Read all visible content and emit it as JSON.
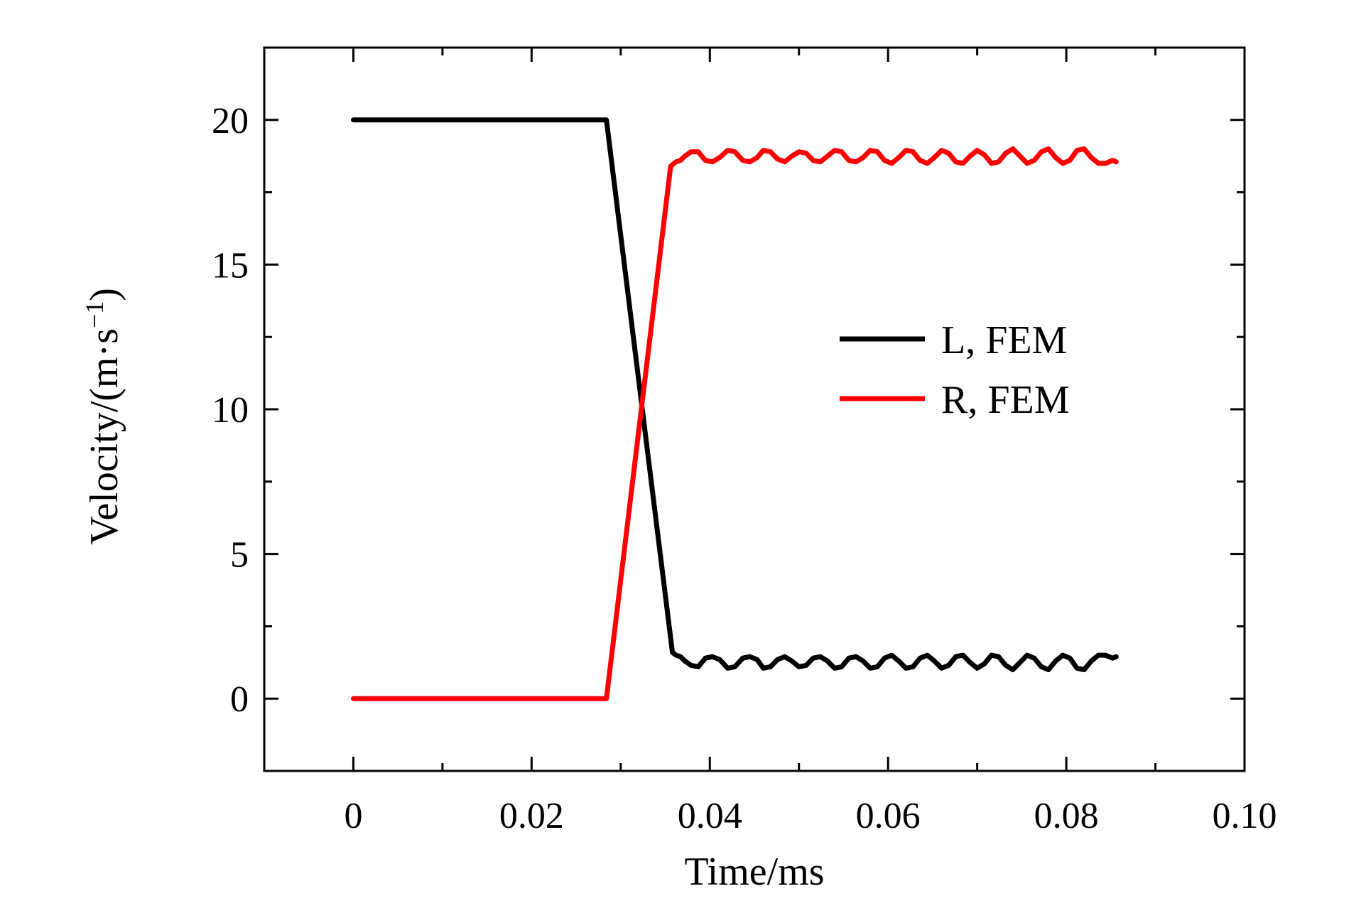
{
  "chart_data": {
    "type": "line",
    "xlabel": "Time/ms",
    "ylabel": {
      "main": "Velocity/(m·s",
      "sup": "−1",
      "close": ")"
    },
    "xlim": [
      -0.01,
      0.1
    ],
    "ylim": [
      -2.5,
      22.5
    ],
    "xticks": [
      0,
      0.02,
      0.04,
      0.06,
      0.08,
      0.1
    ],
    "xtick_labels": [
      "0",
      "0.02",
      "0.04",
      "0.06",
      "0.08",
      "0.10"
    ],
    "yticks": [
      0,
      5,
      10,
      15,
      20
    ],
    "ytick_labels": [
      "0",
      "5",
      "10",
      "15",
      "20"
    ],
    "legend_position": "center-right",
    "grid": false,
    "series": [
      {
        "name": "L, FEM",
        "color": "#000000",
        "x": [
          0,
          0.0284,
          0.0358,
          0.0362,
          0.0367,
          0.0372,
          0.0379,
          0.0387,
          0.0395,
          0.0403,
          0.0411,
          0.042,
          0.0428,
          0.0437,
          0.0445,
          0.0453,
          0.046,
          0.0468,
          0.0476,
          0.0484,
          0.0492,
          0.05,
          0.0508,
          0.0516,
          0.0524,
          0.0532,
          0.054,
          0.0548,
          0.0556,
          0.0564,
          0.0572,
          0.058,
          0.0588,
          0.0596,
          0.0604,
          0.0612,
          0.062,
          0.0628,
          0.0636,
          0.0644,
          0.0652,
          0.066,
          0.0668,
          0.0676,
          0.0684,
          0.0692,
          0.07,
          0.0708,
          0.0716,
          0.0724,
          0.0732,
          0.074,
          0.0748,
          0.0756,
          0.0764,
          0.0772,
          0.078,
          0.0788,
          0.0796,
          0.0804,
          0.0812,
          0.082,
          0.0828,
          0.0836,
          0.0844,
          0.0852,
          0.0856
        ],
        "y": [
          20.0,
          20.0,
          1.6,
          1.5,
          1.45,
          1.3,
          1.15,
          1.1,
          1.4,
          1.45,
          1.35,
          1.05,
          1.1,
          1.4,
          1.45,
          1.35,
          1.05,
          1.1,
          1.35,
          1.45,
          1.3,
          1.1,
          1.15,
          1.4,
          1.45,
          1.3,
          1.05,
          1.1,
          1.4,
          1.45,
          1.3,
          1.05,
          1.1,
          1.4,
          1.5,
          1.3,
          1.05,
          1.1,
          1.4,
          1.5,
          1.3,
          1.05,
          1.15,
          1.45,
          1.5,
          1.25,
          1.05,
          1.2,
          1.5,
          1.45,
          1.15,
          1.0,
          1.25,
          1.5,
          1.4,
          1.1,
          1.0,
          1.3,
          1.5,
          1.4,
          1.05,
          1.0,
          1.3,
          1.5,
          1.5,
          1.4,
          1.45
        ]
      },
      {
        "name": "R, FEM",
        "color": "#ff0000",
        "x": [
          0,
          0.0284,
          0.0356,
          0.0362,
          0.0367,
          0.0372,
          0.0379,
          0.0387,
          0.0395,
          0.0403,
          0.0411,
          0.042,
          0.0428,
          0.0437,
          0.0445,
          0.0453,
          0.046,
          0.0468,
          0.0476,
          0.0484,
          0.0492,
          0.05,
          0.0508,
          0.0516,
          0.0524,
          0.0532,
          0.054,
          0.0548,
          0.0556,
          0.0564,
          0.0572,
          0.058,
          0.0588,
          0.0596,
          0.0604,
          0.0612,
          0.062,
          0.0628,
          0.0636,
          0.0644,
          0.0652,
          0.066,
          0.0668,
          0.0676,
          0.0684,
          0.0692,
          0.07,
          0.0708,
          0.0716,
          0.0724,
          0.0732,
          0.074,
          0.0748,
          0.0756,
          0.0764,
          0.0772,
          0.078,
          0.0788,
          0.0796,
          0.0804,
          0.0812,
          0.082,
          0.0828,
          0.0836,
          0.0844,
          0.0852,
          0.0856
        ],
        "y": [
          0.0,
          0.0,
          18.4,
          18.55,
          18.6,
          18.75,
          18.9,
          18.9,
          18.6,
          18.55,
          18.7,
          18.95,
          18.9,
          18.6,
          18.55,
          18.7,
          18.95,
          18.9,
          18.65,
          18.55,
          18.75,
          18.9,
          18.85,
          18.6,
          18.55,
          18.75,
          18.95,
          18.9,
          18.6,
          18.55,
          18.7,
          18.95,
          18.9,
          18.6,
          18.5,
          18.7,
          18.95,
          18.9,
          18.6,
          18.5,
          18.7,
          18.95,
          18.85,
          18.55,
          18.5,
          18.75,
          18.95,
          18.8,
          18.5,
          18.55,
          18.85,
          19.0,
          18.75,
          18.5,
          18.6,
          18.9,
          19.0,
          18.7,
          18.5,
          18.6,
          18.95,
          19.0,
          18.7,
          18.5,
          18.5,
          18.6,
          18.55
        ]
      }
    ]
  }
}
